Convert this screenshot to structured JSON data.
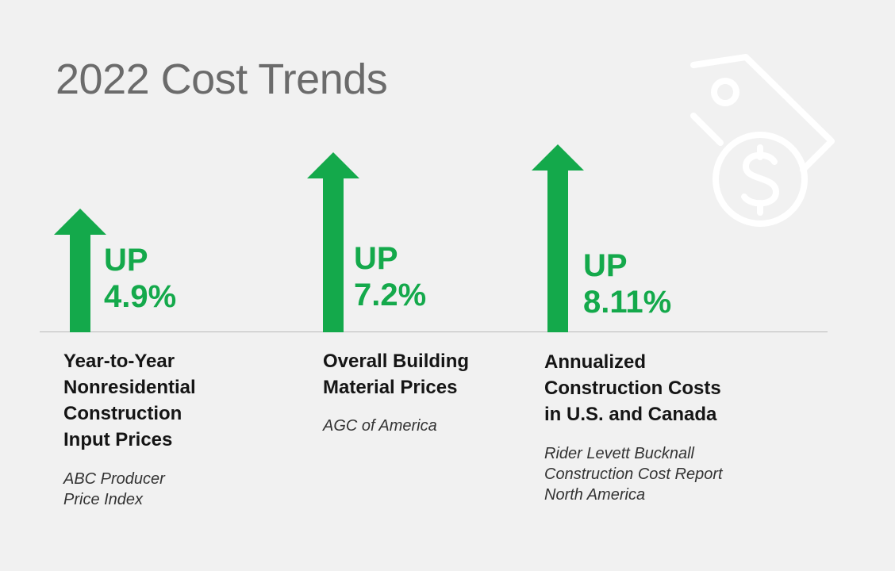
{
  "title": "2022 Cost Trends",
  "colors": {
    "accent": "#14a94b",
    "background": "#f1f1f1",
    "title": "#6b6b6b"
  },
  "decorative_icon": "price-tag-dollar-icon",
  "trends": [
    {
      "direction": "UP",
      "value": "4.9%",
      "label_lines": [
        "Year-to-Year",
        "Nonresidential",
        "Construction",
        "Input Prices"
      ],
      "source_lines": [
        "ABC Producer",
        "Price Index"
      ],
      "icon": "arrow-up-icon"
    },
    {
      "direction": "UP",
      "value": "7.2%",
      "label_lines": [
        "Overall Building",
        "Material Prices"
      ],
      "source_lines": [
        "AGC of America"
      ],
      "icon": "arrow-up-icon"
    },
    {
      "direction": "UP",
      "value": "8.11%",
      "label_lines": [
        "Annualized",
        "Construction Costs",
        "in U.S. and Canada"
      ],
      "source_lines": [
        "Rider Levett Bucknall",
        "Construction Cost Report",
        "North America"
      ],
      "icon": "arrow-up-icon"
    }
  ]
}
